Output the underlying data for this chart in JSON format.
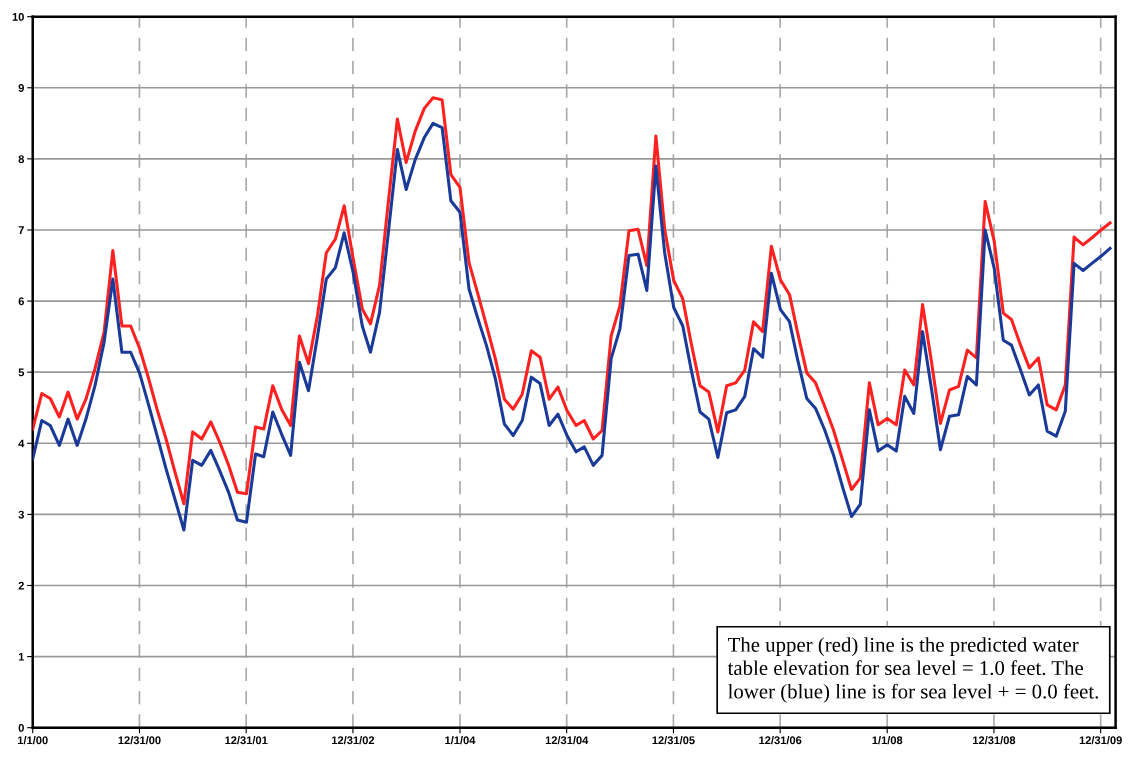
{
  "chart_data": {
    "type": "line",
    "x": [
      "2000-01",
      "2000-02",
      "2000-03",
      "2000-04",
      "2000-05",
      "2000-06",
      "2000-07",
      "2000-08",
      "2000-09",
      "2000-10",
      "2000-11",
      "2000-12",
      "2001-01",
      "2001-02",
      "2001-03",
      "2001-04",
      "2001-05",
      "2001-06",
      "2001-07",
      "2001-08",
      "2001-09",
      "2001-10",
      "2001-11",
      "2001-12",
      "2002-01",
      "2002-02",
      "2002-03",
      "2002-04",
      "2002-05",
      "2002-06",
      "2002-07",
      "2002-08",
      "2002-09",
      "2002-10",
      "2002-11",
      "2002-12",
      "2003-01",
      "2003-02",
      "2003-03",
      "2003-04",
      "2003-05",
      "2003-06",
      "2003-07",
      "2003-08",
      "2003-09",
      "2003-10",
      "2003-11",
      "2003-12",
      "2004-01",
      "2004-02",
      "2004-03",
      "2004-04",
      "2004-05",
      "2004-06",
      "2004-07",
      "2004-08",
      "2004-09",
      "2004-10",
      "2004-11",
      "2004-12",
      "2005-01",
      "2005-02",
      "2005-03",
      "2005-04",
      "2005-05",
      "2005-06",
      "2005-07",
      "2005-08",
      "2005-09",
      "2005-10",
      "2005-11",
      "2005-12",
      "2006-01",
      "2006-02",
      "2006-03",
      "2006-04",
      "2006-05",
      "2006-06",
      "2006-07",
      "2006-08",
      "2006-09",
      "2006-10",
      "2006-11",
      "2006-12",
      "2007-01",
      "2007-02",
      "2007-03",
      "2007-04",
      "2007-05",
      "2007-06",
      "2007-07",
      "2007-08",
      "2007-09",
      "2007-10",
      "2007-11",
      "2007-12",
      "2008-01",
      "2008-02",
      "2008-03",
      "2008-04",
      "2008-05",
      "2008-06",
      "2008-07",
      "2008-08",
      "2008-09",
      "2008-10",
      "2008-11",
      "2008-12",
      "2009-01",
      "2009-02",
      "2009-03",
      "2009-04",
      "2009-05",
      "2009-06",
      "2009-07",
      "2009-08",
      "2009-09",
      "2009-10",
      "2009-11",
      "2009-12",
      "2010-01",
      "2010-02"
    ],
    "series": [
      {
        "color": "#ff2020",
        "values": [
          4.2,
          4.7,
          4.63,
          4.37,
          4.72,
          4.34,
          4.62,
          5.05,
          5.56,
          6.71,
          5.65,
          5.65,
          5.33,
          4.9,
          4.48,
          4.06,
          3.6,
          3.15,
          4.16,
          4.06,
          4.3,
          4.02,
          3.69,
          3.31,
          3.29,
          4.23,
          4.2,
          4.81,
          4.48,
          4.25,
          5.51,
          5.12,
          5.8,
          6.68,
          6.87,
          7.34,
          6.59,
          5.89,
          5.68,
          6.22,
          7.39,
          8.56,
          7.95,
          8.39,
          8.71,
          8.86,
          8.83,
          7.78,
          7.6,
          6.54,
          6.12,
          5.65,
          5.19,
          4.62,
          4.48,
          4.69,
          5.3,
          5.21,
          4.62,
          4.79,
          4.46,
          4.25,
          4.32,
          4.06,
          4.18,
          5.51,
          5.93,
          6.99,
          7.01,
          6.5,
          8.32,
          7.01,
          6.29,
          6.03,
          5.42,
          4.81,
          4.72,
          4.16,
          4.81,
          4.85,
          5.03,
          5.71,
          5.57,
          6.77,
          6.3,
          6.09,
          5.55,
          4.99,
          4.85,
          4.52,
          4.19,
          3.77,
          3.35,
          3.51,
          4.85,
          4.26,
          4.35,
          4.26,
          5.03,
          4.82,
          5.95,
          5.13,
          4.28,
          4.75,
          4.8,
          5.31,
          5.2,
          7.4,
          6.84,
          5.83,
          5.74,
          5.38,
          5.06,
          5.2,
          4.54,
          4.47,
          4.82,
          6.9,
          6.79,
          6.89,
          7.0,
          7.1
        ]
      },
      {
        "color": "#1a3a9a",
        "values": [
          3.78,
          4.32,
          4.25,
          3.97,
          4.34,
          3.97,
          4.34,
          4.81,
          5.42,
          6.31,
          5.28,
          5.28,
          4.98,
          4.53,
          4.11,
          3.64,
          3.22,
          2.78,
          3.76,
          3.69,
          3.9,
          3.62,
          3.31,
          2.92,
          2.89,
          3.85,
          3.81,
          4.44,
          4.13,
          3.83,
          5.14,
          4.74,
          5.51,
          6.31,
          6.47,
          6.96,
          6.4,
          5.65,
          5.28,
          5.84,
          6.96,
          8.13,
          7.57,
          7.99,
          8.3,
          8.5,
          8.44,
          7.41,
          7.25,
          6.17,
          5.77,
          5.37,
          4.91,
          4.27,
          4.11,
          4.32,
          4.93,
          4.84,
          4.25,
          4.41,
          4.11,
          3.88,
          3.95,
          3.69,
          3.83,
          5.19,
          5.61,
          6.64,
          6.66,
          6.15,
          7.9,
          6.68,
          5.91,
          5.65,
          5.05,
          4.44,
          4.34,
          3.8,
          4.43,
          4.47,
          4.66,
          5.33,
          5.21,
          6.39,
          5.88,
          5.71,
          5.17,
          4.63,
          4.49,
          4.19,
          3.84,
          3.39,
          2.97,
          3.14,
          4.47,
          3.89,
          3.98,
          3.89,
          4.66,
          4.42,
          5.57,
          4.75,
          3.91,
          4.38,
          4.4,
          4.94,
          4.82,
          7.0,
          6.46,
          5.45,
          5.38,
          5.03,
          4.68,
          4.82,
          4.17,
          4.1,
          4.45,
          6.53,
          6.43,
          6.53,
          6.63,
          6.74
        ]
      }
    ],
    "xlim": [
      "2000-01-01",
      "2010-02-20"
    ],
    "xticks": [
      {
        "value": "2000-01-01",
        "label": "1/1/00"
      },
      {
        "value": "2000-12-31",
        "label": "12/31/00"
      },
      {
        "value": "2001-12-31",
        "label": "12/31/01"
      },
      {
        "value": "2002-12-31",
        "label": "12/31/02"
      },
      {
        "value": "2004-01-01",
        "label": "1/1/04"
      },
      {
        "value": "2004-12-31",
        "label": "12/31/04"
      },
      {
        "value": "2005-12-31",
        "label": "12/31/05"
      },
      {
        "value": "2006-12-31",
        "label": "12/31/06"
      },
      {
        "value": "2008-01-01",
        "label": "1/1/08"
      },
      {
        "value": "2008-12-31",
        "label": "12/31/08"
      },
      {
        "value": "2009-12-31",
        "label": "12/31/09"
      }
    ],
    "ylim": [
      0,
      10
    ],
    "yticks": [
      0,
      1,
      2,
      3,
      4,
      5,
      6,
      7,
      8,
      9,
      10
    ],
    "grid": true,
    "marker": "none",
    "line_style": "solid",
    "annotations": [
      "The upper (red) line is the predicted water\ntable elevation for sea level = 1.0 feet. The\nlower (blue) line is for sea level + = 0.0 feet."
    ]
  }
}
